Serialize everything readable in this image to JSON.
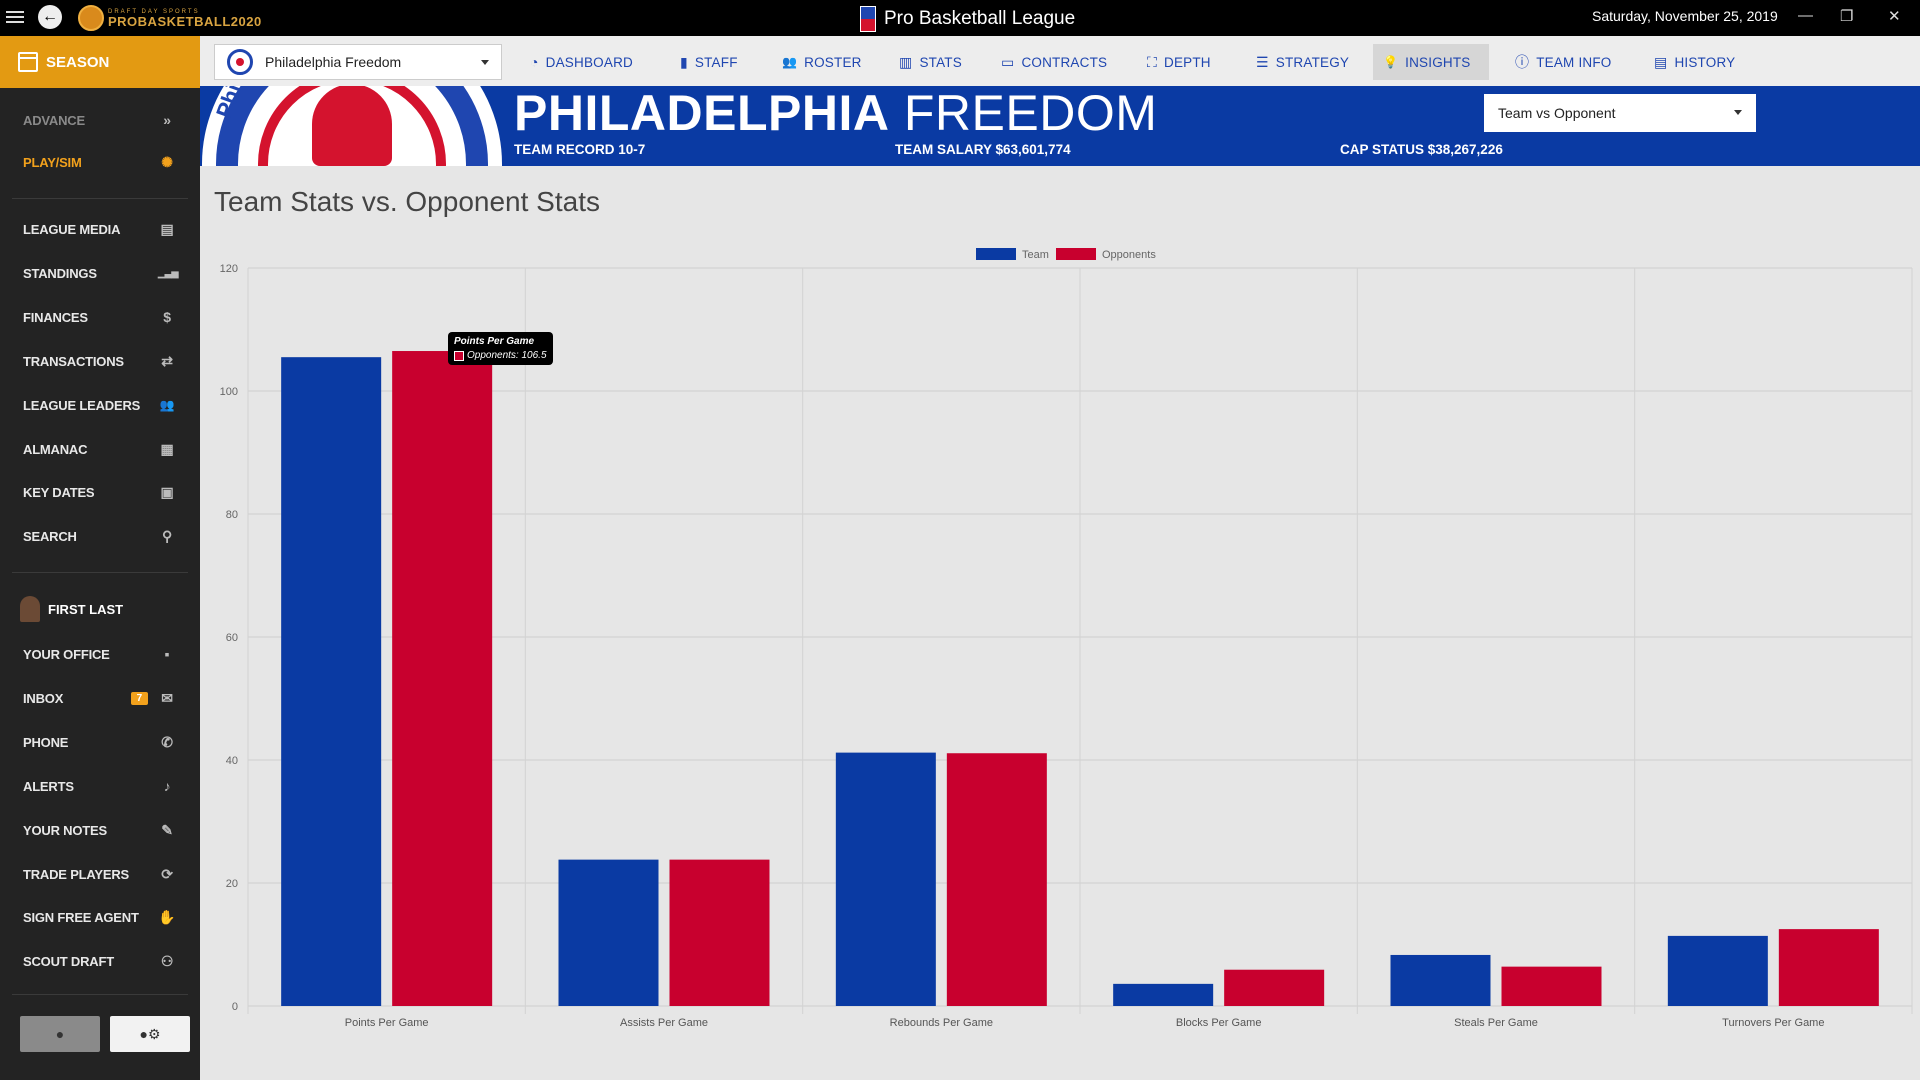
{
  "app": {
    "logo_small": "DRAFT DAY SPORTS",
    "logo_big": "PROBASKETBALL2020",
    "title": "Pro Basketball League",
    "date": "Saturday, November 25, 2019"
  },
  "sidebar": {
    "season": "SEASON",
    "items": [
      {
        "label": "ADVANCE",
        "icon": "»"
      },
      {
        "label": "PLAY/SIM",
        "icon": "✺"
      },
      {
        "label": "LEAGUE MEDIA",
        "icon": "▤"
      },
      {
        "label": "STANDINGS",
        "icon": "▁▃▅"
      },
      {
        "label": "FINANCES",
        "icon": "$"
      },
      {
        "label": "TRANSACTIONS",
        "icon": "⇄"
      },
      {
        "label": "LEAGUE LEADERS",
        "icon": "👥"
      },
      {
        "label": "ALMANAC",
        "icon": "▦"
      },
      {
        "label": "KEY DATES",
        "icon": "▣"
      },
      {
        "label": "SEARCH",
        "icon": "⚲"
      }
    ],
    "user_name": "FIRST LAST",
    "user_items": [
      {
        "label": "YOUR OFFICE",
        "icon": "▪"
      },
      {
        "label": "INBOX",
        "icon": "✉",
        "badge": "7"
      },
      {
        "label": "PHONE",
        "icon": "✆"
      },
      {
        "label": "ALERTS",
        "icon": "♪"
      },
      {
        "label": "YOUR NOTES",
        "icon": "✎"
      },
      {
        "label": "TRADE PLAYERS",
        "icon": "⟳"
      },
      {
        "label": "SIGN FREE AGENT",
        "icon": "✋"
      },
      {
        "label": "SCOUT DRAFT",
        "icon": "⚇"
      }
    ]
  },
  "topnav": {
    "team_select": "Philadelphia Freedom",
    "tabs": [
      {
        "label": "DASHBOARD",
        "icon": "◔"
      },
      {
        "label": "STAFF",
        "icon": "▮"
      },
      {
        "label": "ROSTER",
        "icon": "👥"
      },
      {
        "label": "STATS",
        "icon": "▥"
      },
      {
        "label": "CONTRACTS",
        "icon": "▭"
      },
      {
        "label": "DEPTH",
        "icon": "⛶"
      },
      {
        "label": "STRATEGY",
        "icon": "☰"
      },
      {
        "label": "INSIGHTS",
        "icon": "💡"
      },
      {
        "label": "TEAM INFO",
        "icon": "ⓘ"
      },
      {
        "label": "HISTORY",
        "icon": "▤"
      }
    ]
  },
  "team": {
    "name_city": "PHILADELPHIA",
    "name_team": "FREEDOM",
    "logo_text": "Phi",
    "record": "TEAM RECORD 10-7",
    "salary": "TEAM SALARY $63,601,774",
    "cap": "CAP STATUS $38,267,226",
    "view_select": "Team vs Opponent"
  },
  "content": {
    "title": "Team Stats vs. Opponent Stats",
    "tooltip_title": "Points Per Game",
    "tooltip_value": "Opponents: 106.5"
  },
  "chart_data": {
    "type": "bar",
    "title": "Team Stats vs. Opponent Stats",
    "categories": [
      "Points Per Game",
      "Assists Per Game",
      "Rebounds Per Game",
      "Blocks Per Game",
      "Steals Per Game",
      "Turnovers Per Game"
    ],
    "series": [
      {
        "name": "Team",
        "color": "#0a3aa3",
        "values": [
          105.5,
          23.8,
          41.2,
          3.6,
          8.3,
          11.4
        ]
      },
      {
        "name": "Opponents",
        "color": "#c8002e",
        "values": [
          106.5,
          23.8,
          41.1,
          5.9,
          6.4,
          12.5
        ]
      }
    ],
    "ylim": [
      0,
      120
    ],
    "yticks": [
      0,
      20,
      40,
      60,
      80,
      100,
      120
    ],
    "legend": "top-center",
    "grid": true
  }
}
